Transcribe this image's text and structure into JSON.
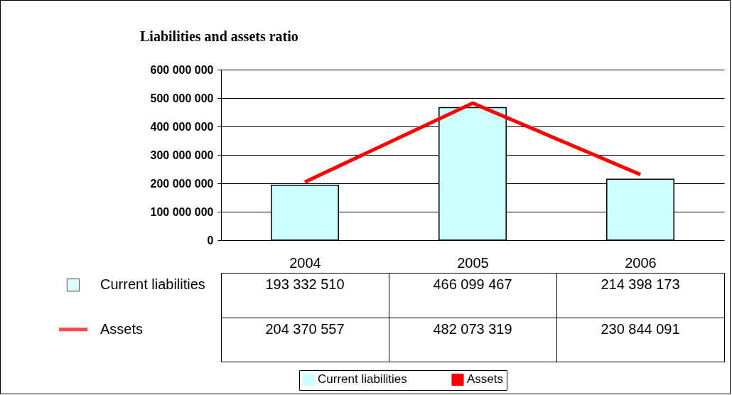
{
  "chart_data": {
    "type": "bar",
    "title": "Liabilities and assets ratio",
    "categories": [
      "2004",
      "2005",
      "2006"
    ],
    "series": [
      {
        "name": "Current liabilities",
        "color": "#ccffff",
        "values": [
          193332510,
          466099467,
          214398173
        ],
        "value_labels": [
          "193 332 510",
          "466 099 467",
          "214 398 173"
        ]
      },
      {
        "name": "Assets",
        "type": "line",
        "color": "#ff0000",
        "values": [
          204370557,
          482073319,
          230844091
        ],
        "value_labels": [
          "204 370 557",
          "482 073 319",
          "230 844 091"
        ]
      }
    ],
    "ylim": [
      0,
      600000000
    ],
    "yticks": [
      0,
      {
        "value": 100000000,
        "label": "100 000 000"
      },
      {
        "value": 200000000,
        "label": "200 000 000"
      },
      {
        "value": 300000000,
        "label": "300 000 000"
      },
      {
        "value": 400000000,
        "label": "400 000 000"
      },
      {
        "value": 500000000,
        "label": "500 000 000"
      },
      {
        "value": 600000000,
        "label": "600 000 000"
      }
    ],
    "grid": "y",
    "legend": "bottom"
  }
}
